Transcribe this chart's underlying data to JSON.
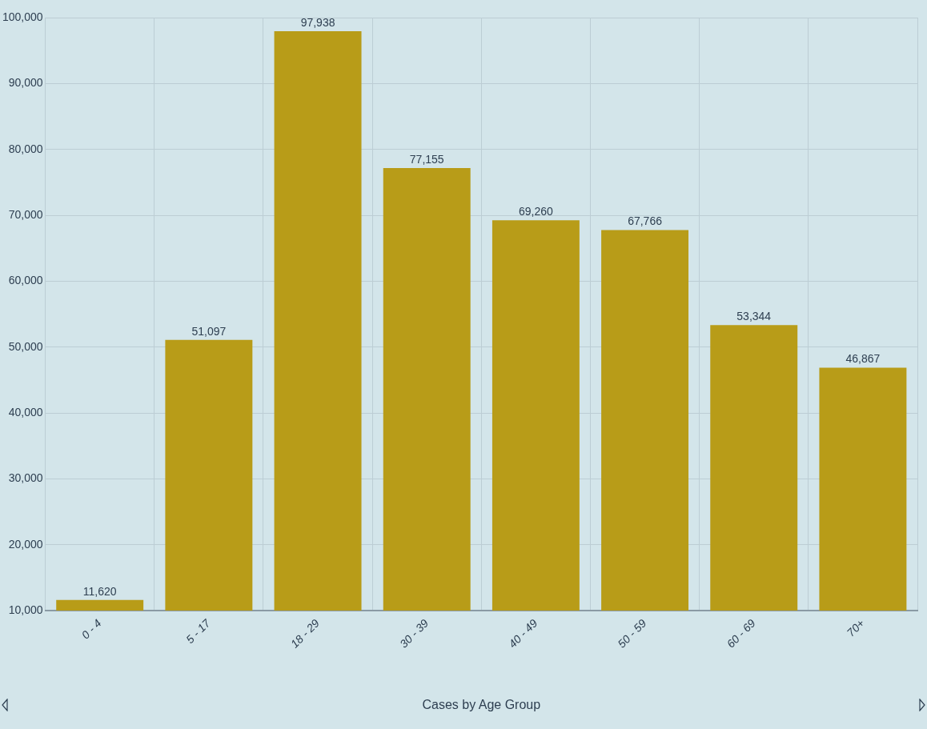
{
  "chart_data": {
    "type": "bar",
    "xlabel": "Cases by Age Group",
    "categories": [
      "0 - 4",
      "5 - 17",
      "18 - 29",
      "30 - 39",
      "40 - 49",
      "50 - 59",
      "60 - 69",
      "70+"
    ],
    "values": [
      11620,
      51097,
      97938,
      77155,
      69260,
      67766,
      53344,
      46867
    ],
    "color": "#b89c18",
    "value_labels": [
      "11,620",
      "51,097",
      "97,938",
      "77,155",
      "69,260",
      "67,766",
      "53,344",
      "46,867"
    ],
    "ylim": [
      10000,
      100000
    ],
    "yticks": [
      {
        "value": 10000,
        "label": "10,000"
      },
      {
        "value": 20000,
        "label": "20,000"
      },
      {
        "value": 30000,
        "label": "30,000"
      },
      {
        "value": 40000,
        "label": "40,000"
      },
      {
        "value": 50000,
        "label": "50,000"
      },
      {
        "value": 60000,
        "label": "60,000"
      },
      {
        "value": 70000,
        "label": "70,000"
      },
      {
        "value": 80000,
        "label": "80,000"
      },
      {
        "value": 90000,
        "label": "90,000"
      },
      {
        "value": 100000,
        "label": "100,000"
      }
    ],
    "grid": true
  }
}
